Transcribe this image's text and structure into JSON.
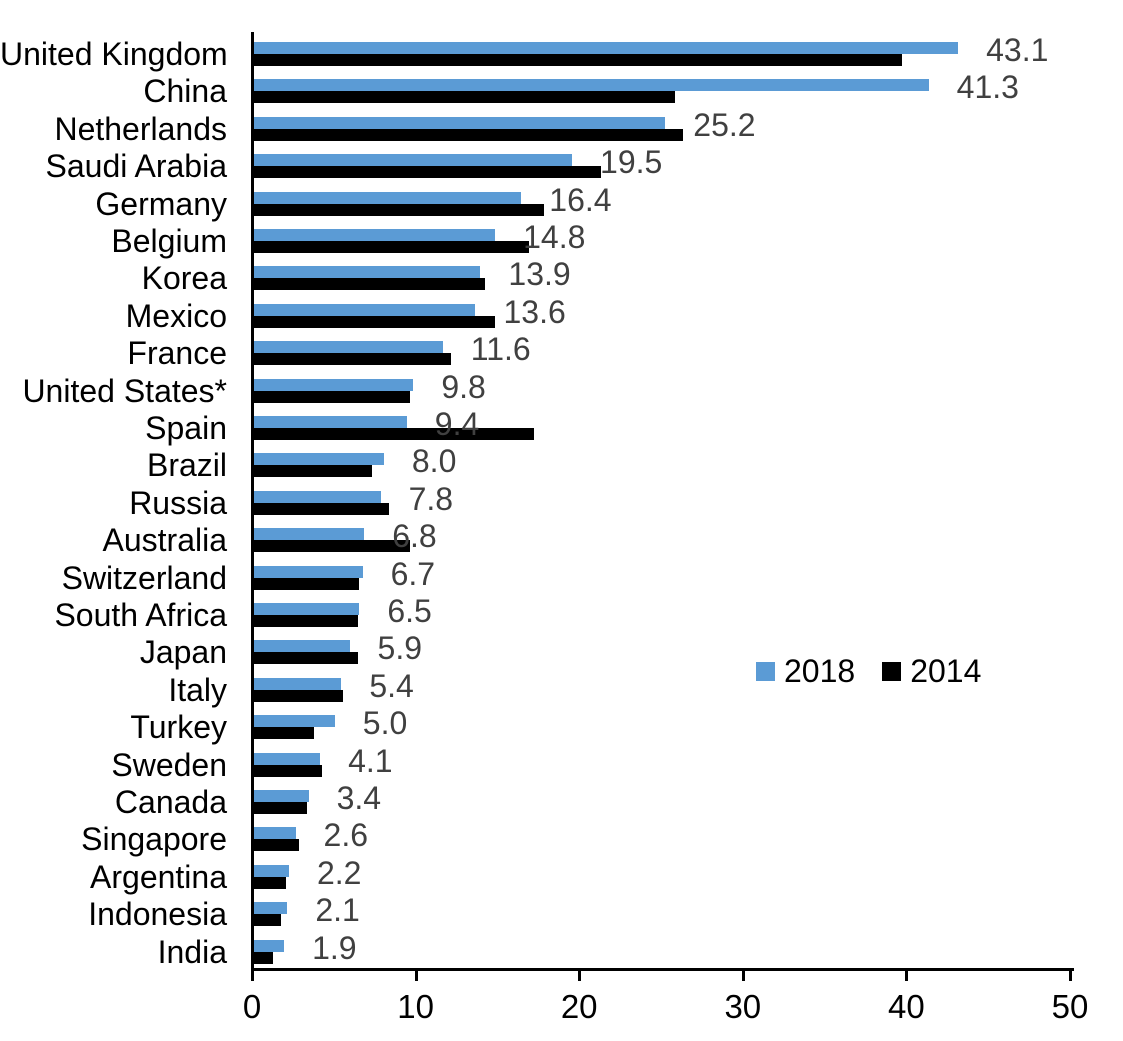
{
  "chart_data": {
    "type": "bar",
    "orientation": "horizontal",
    "title": "",
    "xlabel": "",
    "ylabel": "",
    "xlim": [
      0,
      50
    ],
    "xticks": [
      0,
      10,
      20,
      30,
      40,
      50
    ],
    "grid": false,
    "legend_position": "middle-right",
    "value_label_color": "#404040",
    "axis_color": "#000000",
    "categories": [
      "United Kingdom",
      "China",
      "Netherlands",
      "Saudi Arabia",
      "Germany",
      "Belgium",
      "Korea",
      "Mexico",
      "France",
      "United States*",
      "Spain",
      "Brazil",
      "Russia",
      "Australia",
      "Switzerland",
      "South Africa",
      "Japan",
      "Italy",
      "Turkey",
      "Sweden",
      "Canada",
      "Singapore",
      "Argentina",
      "Indonesia",
      "India"
    ],
    "series": [
      {
        "name": "2018",
        "color": "#5B9BD5",
        "data_labels_shown": true,
        "values": [
          43.1,
          41.3,
          25.2,
          19.5,
          16.4,
          14.8,
          13.9,
          13.6,
          11.6,
          9.8,
          9.4,
          8.0,
          7.8,
          6.8,
          6.7,
          6.5,
          5.9,
          5.4,
          5.0,
          4.1,
          3.4,
          2.6,
          2.2,
          2.1,
          1.9
        ]
      },
      {
        "name": "2014",
        "color": "#000000",
        "data_labels_shown": false,
        "values": [
          39.7,
          25.8,
          26.3,
          21.3,
          17.8,
          16.9,
          14.2,
          14.8,
          12.1,
          9.6,
          17.2,
          7.3,
          8.3,
          9.6,
          6.5,
          6.4,
          6.4,
          5.5,
          3.7,
          4.2,
          3.3,
          2.8,
          2.0,
          1.7,
          1.2
        ]
      }
    ]
  }
}
